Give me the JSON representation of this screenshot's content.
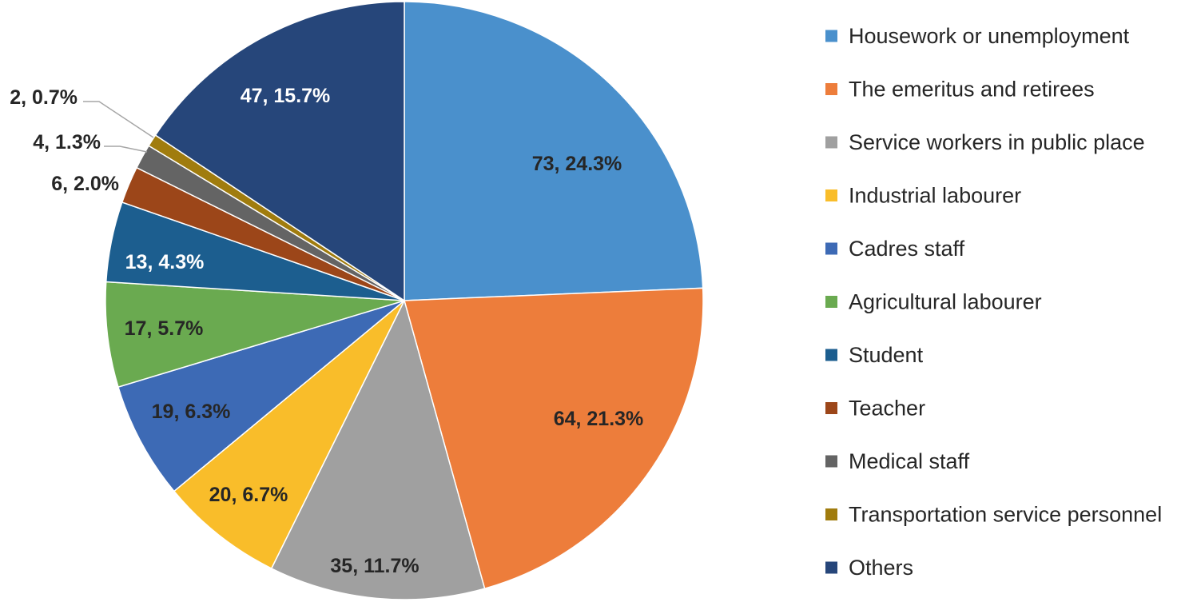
{
  "chart_data": {
    "type": "pie",
    "title": "",
    "legend_position": "right",
    "start_angle_deg": 0,
    "direction": "clockwise",
    "slices": [
      {
        "name": "Housework or unemployment",
        "value": 73,
        "percent": 24.3,
        "label": "73, 24.3%",
        "color": "#4a90cc",
        "label_color": "#262626"
      },
      {
        "name": "The emeritus and retirees",
        "value": 64,
        "percent": 21.3,
        "label": "64, 21.3%",
        "color": "#ed7d3b",
        "label_color": "#262626"
      },
      {
        "name": "Service workers in public place",
        "value": 35,
        "percent": 11.7,
        "label": "35, 11.7%",
        "color": "#a0a0a0",
        "label_color": "#262626"
      },
      {
        "name": "Industrial labourer",
        "value": 20,
        "percent": 6.7,
        "label": "20, 6.7%",
        "color": "#f9bd2a",
        "label_color": "#262626"
      },
      {
        "name": "Cadres staff",
        "value": 19,
        "percent": 6.3,
        "label": "19, 6.3%",
        "color": "#3d6ab5",
        "label_color": "#262626"
      },
      {
        "name": "Agricultural labourer",
        "value": 17,
        "percent": 5.7,
        "label": "17, 5.7%",
        "color": "#6aaa50",
        "label_color": "#262626"
      },
      {
        "name": "Student",
        "value": 13,
        "percent": 4.3,
        "label": "13, 4.3%",
        "color": "#1c5e8f",
        "label_color": "#ffffff"
      },
      {
        "name": "Teacher",
        "value": 6,
        "percent": 2.0,
        "label": "6, 2.0%",
        "color": "#9c4619",
        "label_color": "#262626"
      },
      {
        "name": "Medical staff",
        "value": 4,
        "percent": 1.3,
        "label": "4, 1.3%",
        "color": "#646464",
        "label_color": "#262626"
      },
      {
        "name": "Transportation service personnel",
        "value": 2,
        "percent": 0.7,
        "label": "2, 0.7%",
        "color": "#a07c0e",
        "label_color": "#262626"
      },
      {
        "name": "Others",
        "value": 47,
        "percent": 15.7,
        "label": "47, 15.7%",
        "color": "#26467a",
        "label_color": "#ffffff"
      }
    ]
  }
}
